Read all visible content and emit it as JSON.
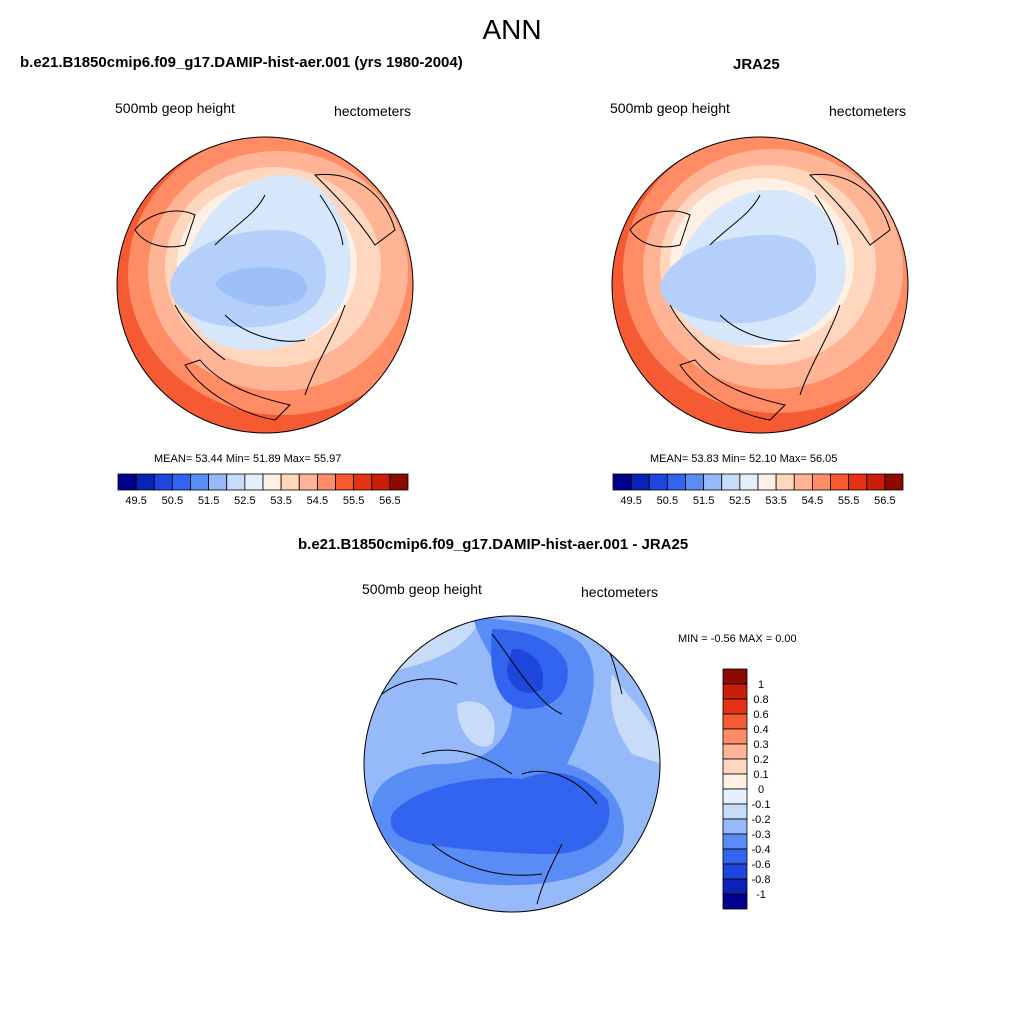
{
  "title": "ANN",
  "panels": [
    {
      "title": "b.e21.B1850cmip6.f09_g17.DAMIP-hist-aer.001 (yrs 1980-2004)",
      "left_label": "500mb geop height",
      "right_label": "hectometers",
      "stats": "MEAN=  53.44  Min=  51.89  Max=  55.97",
      "colorbar": {
        "orientation": "horizontal",
        "tick_labels": [
          "49.5",
          "50.5",
          "51.5",
          "52.5",
          "53.5",
          "54.5",
          "55.5",
          "56.5"
        ],
        "colors": [
          "#00008c",
          "#0a23b4",
          "#1e46dc",
          "#3264f0",
          "#5a8cf5",
          "#96b9fa",
          "#c8dcfa",
          "#e6f0fc",
          "#fff0e6",
          "#ffd7be",
          "#ffb496",
          "#ff8c64",
          "#f55a32",
          "#e63214",
          "#c81e0a",
          "#8c0a00"
        ]
      }
    },
    {
      "title": "JRA25",
      "left_label": "500mb geop height",
      "right_label": "hectometers",
      "stats": "MEAN=  53.83  Min=  52.10  Max=  56.05",
      "colorbar": {
        "orientation": "horizontal",
        "tick_labels": [
          "49.5",
          "50.5",
          "51.5",
          "52.5",
          "53.5",
          "54.5",
          "55.5",
          "56.5"
        ],
        "colors": [
          "#00008c",
          "#0a23b4",
          "#1e46dc",
          "#3264f0",
          "#5a8cf5",
          "#96b9fa",
          "#c8dcfa",
          "#e6f0fc",
          "#fff0e6",
          "#ffd7be",
          "#ffb496",
          "#ff8c64",
          "#f55a32",
          "#e63214",
          "#c81e0a",
          "#8c0a00"
        ]
      }
    },
    {
      "title": "b.e21.B1850cmip6.f09_g17.DAMIP-hist-aer.001 - JRA25",
      "left_label": "500mb geop height",
      "right_label": "hectometers",
      "stats": "MIN =  -0.56 MAX =   0.00",
      "colorbar": {
        "orientation": "vertical",
        "tick_labels": [
          "1",
          "0.8",
          "0.6",
          "0.4",
          "0.3",
          "0.2",
          "0.1",
          "0",
          "-0.1",
          "-0.2",
          "-0.3",
          "-0.4",
          "-0.6",
          "-0.8",
          "-1"
        ],
        "colors": [
          "#8c0a00",
          "#c81e0a",
          "#e63214",
          "#f55a32",
          "#ff8c64",
          "#ffb496",
          "#ffd7be",
          "#fff0e6",
          "#e6f0fc",
          "#c8dcfa",
          "#96b9fa",
          "#5a8cf5",
          "#3264f0",
          "#1e46dc",
          "#0a23b4",
          "#00008c"
        ]
      }
    }
  ]
}
